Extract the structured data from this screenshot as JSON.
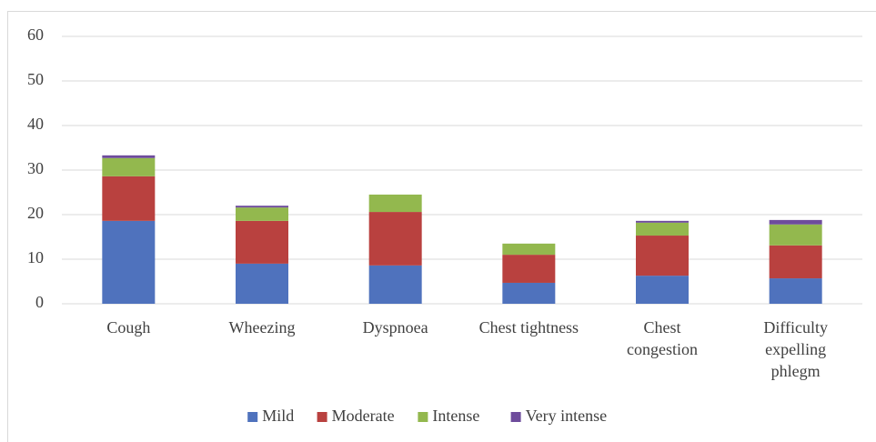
{
  "chart_data": {
    "type": "stacked_bar",
    "categories": [
      "Cough",
      "Wheezing",
      "Dyspnoea",
      "Chest tightness",
      "Chest\ncongestion",
      "Difficulty\nexpelling\nphlegm"
    ],
    "series": [
      {
        "name": "Mild",
        "color": "#4f72bd",
        "values": [
          18.6,
          9.0,
          8.6,
          4.7,
          6.3,
          5.7
        ]
      },
      {
        "name": "Moderate",
        "color": "#b9413f",
        "values": [
          10.0,
          9.6,
          12.0,
          6.3,
          9.0,
          7.4
        ]
      },
      {
        "name": "Intense",
        "color": "#93b84e",
        "values": [
          4.1,
          3.0,
          3.9,
          2.5,
          2.9,
          4.7
        ]
      },
      {
        "name": "Very intense",
        "color": "#6e4c9c",
        "values": [
          0.6,
          0.4,
          0,
          0,
          0.4,
          1.0
        ]
      }
    ],
    "ylim": [
      0,
      60
    ],
    "yticks": [
      0,
      10,
      20,
      30,
      40,
      50,
      60
    ],
    "grid": true,
    "legend": "bottom"
  }
}
